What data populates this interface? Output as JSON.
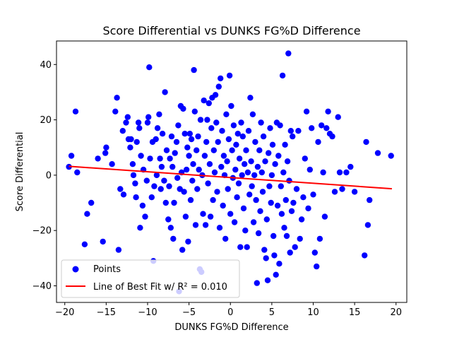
{
  "chart_data": {
    "type": "scatter",
    "title": "Score Differential vs DUNKS FG%D Difference",
    "xlabel": "DUNKS FG%D Difference",
    "ylabel": "Score Differential",
    "xlim": [
      -21,
      21.3
    ],
    "ylim": [
      -46,
      48.5
    ],
    "xticks": [
      -20,
      -15,
      -10,
      -5,
      0,
      5,
      10,
      15,
      20
    ],
    "yticks": [
      -40,
      -20,
      0,
      20,
      40
    ],
    "grid": false,
    "legend_position": "lower-left",
    "colors": {
      "points": "#0000ff",
      "fit_line": "#ff0000"
    },
    "series": [
      {
        "name": "Points",
        "kind": "scatter",
        "points": [
          [
            -19.5,
            3
          ],
          [
            -19.2,
            7
          ],
          [
            -18.7,
            23
          ],
          [
            -18.5,
            1
          ],
          [
            -17.6,
            -25
          ],
          [
            -17.3,
            -14
          ],
          [
            -16.8,
            -10
          ],
          [
            -16,
            6
          ],
          [
            -15.4,
            -24
          ],
          [
            -15.1,
            8
          ],
          [
            -15,
            10
          ],
          [
            -14.3,
            4
          ],
          [
            -13.9,
            23
          ],
          [
            -13.7,
            28
          ],
          [
            -13.5,
            -27
          ],
          [
            -13.3,
            -5
          ],
          [
            -13,
            16
          ],
          [
            -12.9,
            -7
          ],
          [
            -12.6,
            19
          ],
          [
            -12.4,
            21
          ],
          [
            -12.3,
            13
          ],
          [
            -12.1,
            10
          ],
          [
            -12,
            13
          ],
          [
            -11.8,
            4
          ],
          [
            -11.7,
            0
          ],
          [
            -11.5,
            -3
          ],
          [
            -11.4,
            -8
          ],
          [
            -11.3,
            12
          ],
          [
            -11.1,
            19
          ],
          [
            -11,
            17
          ],
          [
            -10.9,
            -19
          ],
          [
            -10.8,
            7
          ],
          [
            -10.6,
            -11
          ],
          [
            -10.5,
            2
          ],
          [
            -10.3,
            -15
          ],
          [
            -10.1,
            -2
          ],
          [
            -10,
            19
          ],
          [
            -9.9,
            21
          ],
          [
            -9.8,
            39
          ],
          [
            -9.7,
            6
          ],
          [
            -9.5,
            -8
          ],
          [
            -9.4,
            12
          ],
          [
            -9.3,
            -31
          ],
          [
            -9.2,
            -4
          ],
          [
            -9,
            13
          ],
          [
            -8.9,
            0
          ],
          [
            -8.8,
            17
          ],
          [
            -8.6,
            22
          ],
          [
            -8.5,
            6
          ],
          [
            -8.4,
            -5
          ],
          [
            -8.3,
            3
          ],
          [
            -8.2,
            15
          ],
          [
            -8,
            -2
          ],
          [
            -7.9,
            30
          ],
          [
            -7.8,
            -10
          ],
          [
            -7.7,
            9
          ],
          [
            -7.5,
            -16
          ],
          [
            -7.4,
            -4
          ],
          [
            -7.3,
            6
          ],
          [
            -7.2,
            -19
          ],
          [
            -7.1,
            14
          ],
          [
            -7,
            3
          ],
          [
            -6.9,
            -23
          ],
          [
            -6.8,
            -10
          ],
          [
            -6.7,
            8
          ],
          [
            -6.5,
            12
          ],
          [
            -6.4,
            -1
          ],
          [
            -6.3,
            18
          ],
          [
            -6.2,
            -42
          ],
          [
            -6.1,
            -5
          ],
          [
            -6,
            25
          ],
          [
            -5.9,
            1
          ],
          [
            -5.8,
            -27
          ],
          [
            -5.7,
            24
          ],
          [
            -5.6,
            -6
          ],
          [
            -5.5,
            15
          ],
          [
            -5.4,
            -15
          ],
          [
            -5.3,
            2
          ],
          [
            -5.2,
            10
          ],
          [
            -5.1,
            -24
          ],
          [
            -5,
            7
          ],
          [
            -4.9,
            15
          ],
          [
            -4.8,
            -9
          ],
          [
            -4.7,
            13
          ],
          [
            -4.6,
            -2
          ],
          [
            -4.5,
            4
          ],
          [
            -4.4,
            38
          ],
          [
            -4.3,
            23
          ],
          [
            -4.2,
            -18
          ],
          [
            -4.1,
            9
          ],
          [
            -4,
            -5
          ],
          [
            -3.9,
            14
          ],
          [
            -3.8,
            2
          ],
          [
            -3.7,
            -34
          ],
          [
            -3.6,
            20
          ],
          [
            -3.5,
            -35
          ],
          [
            -3.4,
            0
          ],
          [
            -3.3,
            -14
          ],
          [
            -3.2,
            27
          ],
          [
            -3.1,
            7
          ],
          [
            -3,
            -18
          ],
          [
            -2.9,
            12
          ],
          [
            -2.8,
            20
          ],
          [
            -2.7,
            -3
          ],
          [
            -2.6,
            26
          ],
          [
            -2.5,
            4
          ],
          [
            -2.4,
            -15
          ],
          [
            -2.3,
            17
          ],
          [
            -2.2,
            28
          ],
          [
            -2.1,
            -9
          ],
          [
            -2,
            9
          ],
          [
            -1.9,
            1
          ],
          [
            -1.8,
            29
          ],
          [
            -1.7,
            19
          ],
          [
            -1.6,
            -6
          ],
          [
            -1.5,
            12
          ],
          [
            -1.4,
            32
          ],
          [
            -1.3,
            -19
          ],
          [
            -1.2,
            35
          ],
          [
            -1.1,
            3
          ],
          [
            -1,
            16
          ],
          [
            -0.9,
            -11
          ],
          [
            -0.8,
            7
          ],
          [
            -0.7,
            0
          ],
          [
            -0.6,
            -23
          ],
          [
            -0.5,
            22
          ],
          [
            -0.4,
            5
          ],
          [
            -0.3,
            -5
          ],
          [
            -0.2,
            13
          ],
          [
            -0.1,
            36
          ],
          [
            0,
            -14
          ],
          [
            0.1,
            25
          ],
          [
            0.2,
            9
          ],
          [
            0.3,
            -1
          ],
          [
            0.4,
            18
          ],
          [
            0.5,
            -17
          ],
          [
            0.6,
            2
          ],
          [
            0.7,
            11
          ],
          [
            0.8,
            -8
          ],
          [
            0.9,
            15
          ],
          [
            1,
            -3
          ],
          [
            1.1,
            6
          ],
          [
            1.2,
            -26
          ],
          [
            1.3,
            19
          ],
          [
            1.4,
            0
          ],
          [
            1.5,
            14
          ],
          [
            1.6,
            -12
          ],
          [
            1.7,
            4
          ],
          [
            1.8,
            -20
          ],
          [
            1.9,
            9
          ],
          [
            2,
            -26
          ],
          [
            2.1,
            1
          ],
          [
            2.2,
            16
          ],
          [
            2.3,
            -7
          ],
          [
            2.4,
            28
          ],
          [
            2.5,
            5
          ],
          [
            2.6,
            -4
          ],
          [
            2.7,
            22
          ],
          [
            2.8,
            -17
          ],
          [
            2.9,
            0
          ],
          [
            3,
            12
          ],
          [
            3.1,
            -9
          ],
          [
            3.2,
            -39
          ],
          [
            3.3,
            3
          ],
          [
            3.4,
            -21
          ],
          [
            3.5,
            9
          ],
          [
            3.6,
            -13
          ],
          [
            3.7,
            19
          ],
          [
            3.8,
            1
          ],
          [
            3.9,
            -6
          ],
          [
            4,
            14
          ],
          [
            4.1,
            -27
          ],
          [
            4.2,
            5
          ],
          [
            4.3,
            -30
          ],
          [
            4.4,
            -16
          ],
          [
            4.5,
            -38
          ],
          [
            4.6,
            8
          ],
          [
            4.7,
            -4
          ],
          [
            4.8,
            17
          ],
          [
            4.9,
            -10
          ],
          [
            5,
            0
          ],
          [
            5.1,
            11
          ],
          [
            5.2,
            -22
          ],
          [
            5.3,
            -29
          ],
          [
            5.4,
            4
          ],
          [
            5.5,
            -36
          ],
          [
            5.6,
            19
          ],
          [
            5.7,
            -11
          ],
          [
            5.8,
            7
          ],
          [
            5.9,
            -32
          ],
          [
            6,
            18
          ],
          [
            6.1,
            -4
          ],
          [
            6.2,
            -14
          ],
          [
            6.3,
            36
          ],
          [
            6.4,
            1
          ],
          [
            6.5,
            -19
          ],
          [
            6.6,
            11
          ],
          [
            6.7,
            -9
          ],
          [
            6.8,
            -22
          ],
          [
            6.9,
            5
          ],
          [
            7,
            44
          ],
          [
            7.1,
            -2
          ],
          [
            7.2,
            -28
          ],
          [
            7.3,
            16
          ],
          [
            7.4,
            -13
          ],
          [
            7.5,
            14
          ],
          [
            7.6,
            -10
          ],
          [
            7.8,
            -26
          ],
          [
            8,
            -5
          ],
          [
            8.2,
            16
          ],
          [
            8.4,
            -23
          ],
          [
            8.6,
            -16
          ],
          [
            8.8,
            -8
          ],
          [
            9,
            6
          ],
          [
            9.2,
            23
          ],
          [
            9.4,
            -12
          ],
          [
            9.6,
            2
          ],
          [
            9.8,
            17
          ],
          [
            10,
            -7
          ],
          [
            10.2,
            -28
          ],
          [
            10.4,
            -33
          ],
          [
            10.6,
            12
          ],
          [
            10.8,
            -23
          ],
          [
            11,
            18
          ],
          [
            11.2,
            1
          ],
          [
            11.4,
            -15
          ],
          [
            11.6,
            17
          ],
          [
            11.8,
            23
          ],
          [
            12,
            15
          ],
          [
            12.3,
            14
          ],
          [
            12.6,
            -6
          ],
          [
            13,
            21
          ],
          [
            13.2,
            1
          ],
          [
            13.5,
            -5
          ],
          [
            14,
            1
          ],
          [
            14.5,
            3
          ],
          [
            15,
            -6
          ],
          [
            16.2,
            -29
          ],
          [
            16.4,
            12
          ],
          [
            16.6,
            -18
          ],
          [
            16.8,
            -9
          ],
          [
            17.8,
            8
          ],
          [
            19.4,
            7
          ]
        ]
      },
      {
        "name": "Line of Best Fit w/ $R^2 = 0.010$",
        "legend_label": "Line of Best Fit w/ R² = 0.010",
        "kind": "line",
        "points": [
          [
            -19.5,
            3.2
          ],
          [
            19.5,
            -4.9
          ]
        ]
      }
    ]
  }
}
